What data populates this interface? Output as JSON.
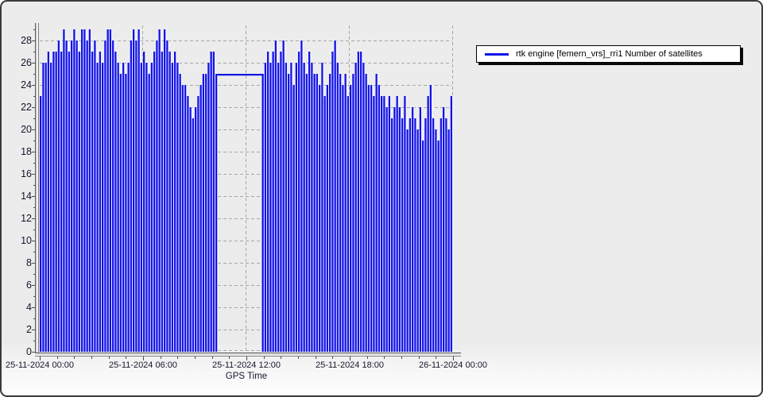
{
  "window": {
    "background": "#ebebeb",
    "border_color": "#3a3a3a"
  },
  "legend": {
    "label": "rtk engine [femern_vrs]_rri1 Number of satellites",
    "line_color": "#1212e8"
  },
  "axes": {
    "x_title": "GPS Time",
    "x_tick_labels": [
      "25-11-2024 00:00",
      "25-11-2024 06:00",
      "25-11-2024 12:00",
      "25-11-2024 18:00",
      "26-11-2024 00:00"
    ],
    "y_tick_labels": [
      "0",
      "2",
      "4",
      "6",
      "8",
      "10",
      "12",
      "14",
      "16",
      "18",
      "20",
      "22",
      "24",
      "26",
      "28"
    ],
    "label_color": "#16162c",
    "grid_color": "#a6a6a6"
  },
  "chart_data": {
    "type": "line",
    "title": "",
    "xlabel": "GPS Time",
    "ylabel": "",
    "ylim": [
      0,
      29
    ],
    "y_tick_step": 2,
    "grid": "dashed",
    "legend_position": "top-right",
    "x_axis_start": "25-11-2024 00:00",
    "x_axis_end": "26-11-2024 00:00",
    "x_start_hours": 0,
    "x_step_hours": 0.15,
    "gap": {
      "start_hours": 10.35,
      "end_hours": 12.9,
      "flat_value": 25
    },
    "series": [
      {
        "name": "rtk engine [femern_vrs]_rri1 Number of satellites",
        "color": "#1212e8"
      }
    ],
    "values": [
      23,
      26,
      26,
      27,
      26,
      27,
      27,
      28,
      27,
      29,
      28,
      27,
      28,
      29,
      28,
      27,
      29,
      29,
      28,
      29,
      27,
      28,
      26,
      27,
      26,
      28,
      29,
      29,
      28,
      27,
      26,
      25,
      26,
      25,
      26,
      28,
      29,
      28,
      29,
      26,
      27,
      26,
      25,
      26,
      27,
      28,
      29,
      27,
      29,
      28,
      27,
      26,
      27,
      26,
      25,
      24,
      24,
      23,
      22,
      21,
      22,
      23,
      24,
      25,
      25,
      26,
      27,
      27,
      25,
      null,
      null,
      null,
      null,
      null,
      null,
      null,
      null,
      null,
      null,
      null,
      null,
      null,
      null,
      null,
      null,
      null,
      25,
      26,
      27,
      26,
      27,
      28,
      26,
      27,
      28,
      26,
      25,
      26,
      24,
      26,
      27,
      28,
      26,
      25,
      27,
      26,
      25,
      25,
      24,
      26,
      23,
      24,
      25,
      27,
      28,
      26,
      25,
      24,
      25,
      23,
      24,
      25,
      26,
      27,
      27,
      26,
      25,
      24,
      24,
      23,
      25,
      24,
      23,
      23,
      22,
      23,
      21,
      22,
      23,
      22,
      21,
      23,
      20,
      21,
      22,
      21,
      20,
      22,
      19,
      21,
      23,
      24,
      21,
      20,
      19,
      21,
      22,
      21,
      20,
      23
    ]
  }
}
